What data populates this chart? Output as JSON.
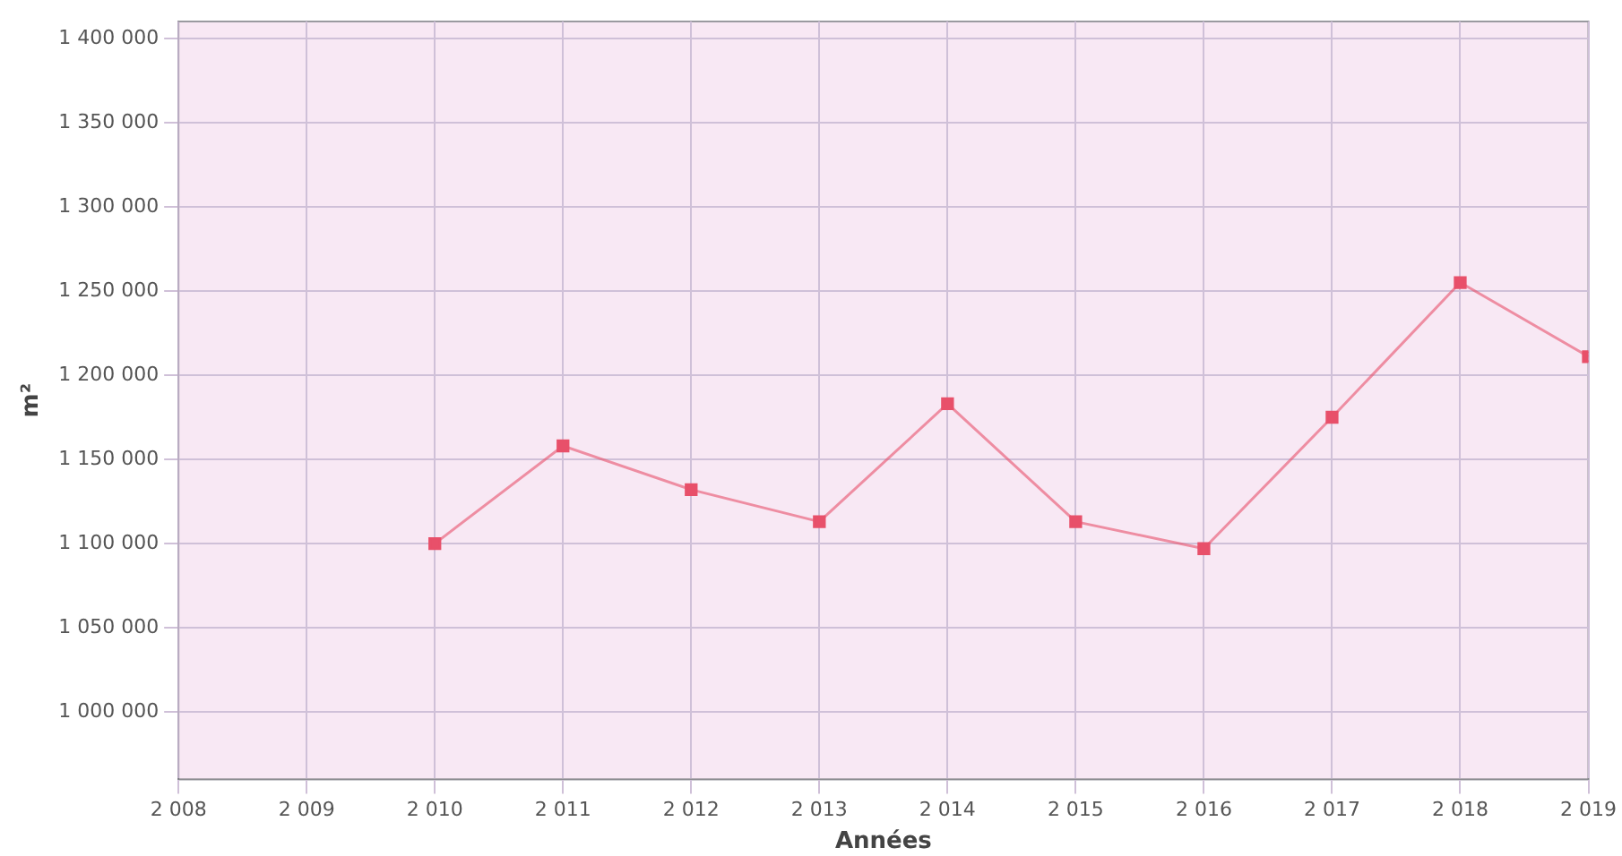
{
  "chart_data": {
    "type": "line",
    "xlabel": "Années",
    "ylabel": "m²",
    "x": [
      2010,
      2011,
      2012,
      2013,
      2014,
      2015,
      2016,
      2017,
      2018,
      2019
    ],
    "series": [
      {
        "color": "#e8506a",
        "values": [
          1100000,
          1158000,
          1132000,
          1113000,
          1183000,
          1113000,
          1097000,
          1175000,
          1255000,
          1211000
        ]
      }
    ],
    "xlim": [
      2008,
      2019
    ],
    "xticks": [
      {
        "value": 2008,
        "label": "2 008"
      },
      {
        "value": 2009,
        "label": "2 009"
      },
      {
        "value": 2010,
        "label": "2 010"
      },
      {
        "value": 2011,
        "label": "2 011"
      },
      {
        "value": 2012,
        "label": "2 012"
      },
      {
        "value": 2013,
        "label": "2 013"
      },
      {
        "value": 2014,
        "label": "2 014"
      },
      {
        "value": 2015,
        "label": "2 015"
      },
      {
        "value": 2016,
        "label": "2 016"
      },
      {
        "value": 2017,
        "label": "2 017"
      },
      {
        "value": 2018,
        "label": "2 018"
      },
      {
        "value": 2019,
        "label": "2 019"
      }
    ],
    "ylim": [
      960000,
      1410000
    ],
    "yticks": [
      {
        "value": 1000000,
        "label": "1 000 000"
      },
      {
        "value": 1050000,
        "label": "1 050 000"
      },
      {
        "value": 1100000,
        "label": "1 100 000"
      },
      {
        "value": 1150000,
        "label": "1 150 000"
      },
      {
        "value": 1200000,
        "label": "1 200 000"
      },
      {
        "value": 1250000,
        "label": "1 250 000"
      },
      {
        "value": 1300000,
        "label": "1 300 000"
      },
      {
        "value": 1350000,
        "label": "1 350 000"
      },
      {
        "value": 1400000,
        "label": "1 400 000"
      }
    ],
    "grid": true,
    "legend": false,
    "marker": "square",
    "line_style": "solid"
  }
}
